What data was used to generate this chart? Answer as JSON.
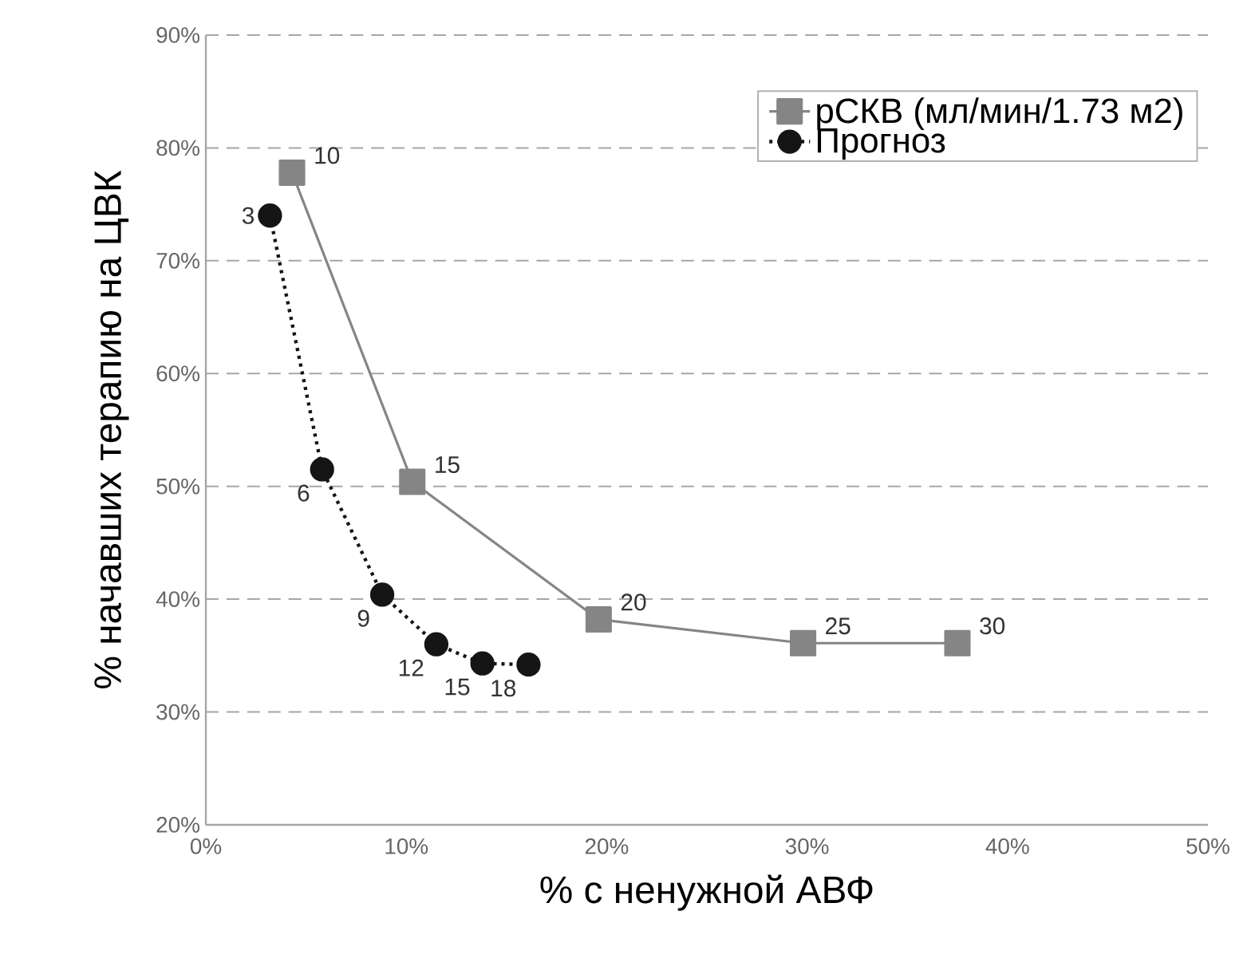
{
  "chart_data": {
    "type": "line",
    "xlabel": "% с ненужной АВФ",
    "ylabel": "% начавших терапию на ЦВК",
    "xlim": [
      0,
      50
    ],
    "xticks": [
      {
        "value": 0,
        "label": "0%"
      },
      {
        "value": 10,
        "label": "10%"
      },
      {
        "value": 20,
        "label": "20%"
      },
      {
        "value": 30,
        "label": "30%"
      },
      {
        "value": 40,
        "label": "40%"
      },
      {
        "value": 50,
        "label": "50%"
      }
    ],
    "ylim": [
      20,
      90
    ],
    "yticks": [
      {
        "value": 20,
        "label": "20%"
      },
      {
        "value": 30,
        "label": "30%"
      },
      {
        "value": 40,
        "label": "40%"
      },
      {
        "value": 50,
        "label": "50%"
      },
      {
        "value": 60,
        "label": "60%"
      },
      {
        "value": 70,
        "label": "70%"
      },
      {
        "value": 80,
        "label": "80%"
      },
      {
        "value": 90,
        "label": "90%"
      }
    ],
    "grid": "y",
    "legend": "top right",
    "series": [
      {
        "name": "рСКВ (мл/мин/1.73 м2)",
        "color": "#858585",
        "marker": "square",
        "line_style": "solid",
        "x": [
          4.3,
          10.3,
          19.6,
          29.8,
          37.5
        ],
        "values": [
          77.8,
          50.4,
          38.2,
          36.1,
          36.1
        ]
      },
      {
        "name": "Прогноз",
        "color": "#151515",
        "marker": "circle",
        "line_style": "dotted",
        "x": [
          3.2,
          5.8,
          8.8,
          11.5,
          13.8,
          16.1
        ],
        "values": [
          74.0,
          51.5,
          40.4,
          36.0,
          34.3,
          34.2
        ]
      }
    ],
    "annotations": [
      {
        "text": "10",
        "x": 4.3,
        "y": 77.8
      },
      {
        "text": "15",
        "x": 10.3,
        "y": 50.4
      },
      {
        "text": "20",
        "x": 19.6,
        "y": 38.2
      },
      {
        "text": "25",
        "x": 29.8,
        "y": 36.1
      },
      {
        "text": "30",
        "x": 37.5,
        "y": 36.1
      },
      {
        "text": "3",
        "x": 3.2,
        "y": 74.0
      },
      {
        "text": "6",
        "x": 5.8,
        "y": 51.5
      },
      {
        "text": "9",
        "x": 8.8,
        "y": 40.4
      },
      {
        "text": "12",
        "x": 11.5,
        "y": 36.0
      },
      {
        "text": "15",
        "x": 13.8,
        "y": 34.3
      },
      {
        "text": "18",
        "x": 16.1,
        "y": 34.2
      }
    ]
  }
}
